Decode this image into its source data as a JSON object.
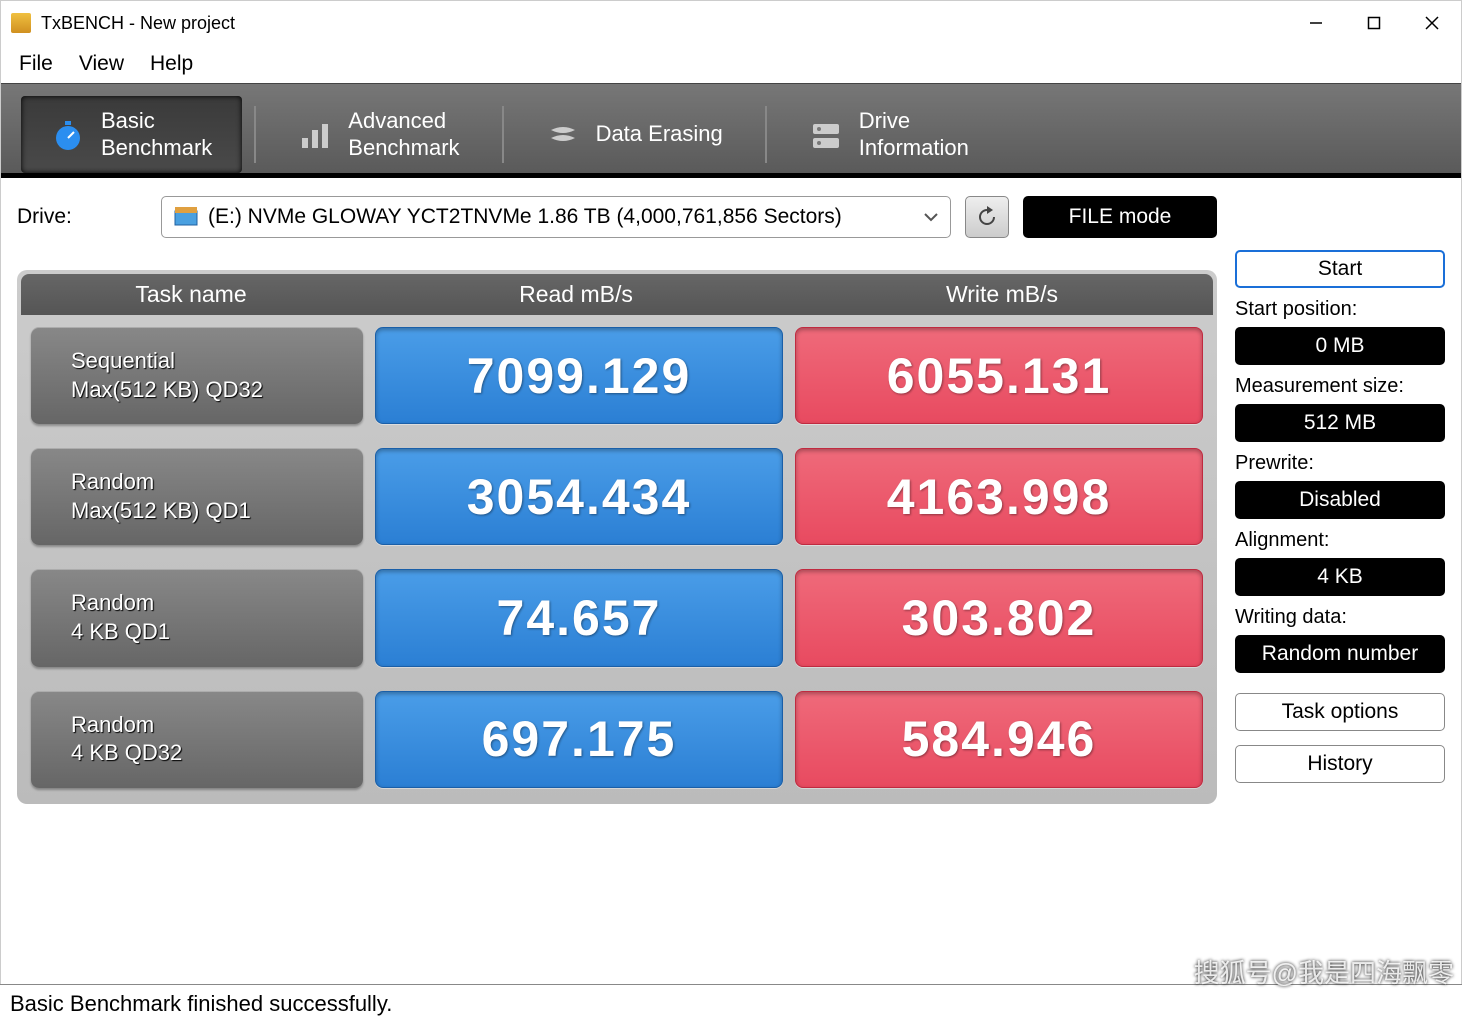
{
  "window": {
    "title": "TxBENCH - New project"
  },
  "menu": {
    "file": "File",
    "view": "View",
    "help": "Help"
  },
  "tabs": {
    "basic": {
      "line1": "Basic",
      "line2": "Benchmark"
    },
    "advanced": {
      "line1": "Advanced",
      "line2": "Benchmark"
    },
    "erase": {
      "label": "Data Erasing"
    },
    "drive": {
      "line1": "Drive",
      "line2": "Information"
    }
  },
  "drive": {
    "label": "Drive:",
    "selected": "(E:) NVMe GLOWAY YCT2TNVMe  1.86 TB (4,000,761,856 Sectors)",
    "filemode": "FILE mode"
  },
  "bench": {
    "headers": {
      "task": "Task name",
      "read": "Read mB/s",
      "write": "Write mB/s"
    },
    "colors": {
      "read_bg": "#3a8de0",
      "write_bg": "#e8556b",
      "task_bg": "#777777",
      "header_bg": "#5c5c5c",
      "frame_bg": "#c4c4c4"
    },
    "value_fontsize": 50,
    "rows": [
      {
        "task_l1": "Sequential",
        "task_l2": "Max(512 KB) QD32",
        "read": "7099.129",
        "write": "6055.131"
      },
      {
        "task_l1": "Random",
        "task_l2": "Max(512 KB) QD1",
        "read": "3054.434",
        "write": "4163.998"
      },
      {
        "task_l1": "Random",
        "task_l2": "4 KB QD1",
        "read": "74.657",
        "write": "303.802"
      },
      {
        "task_l1": "Random",
        "task_l2": "4 KB QD32",
        "read": "697.175",
        "write": "584.946"
      }
    ]
  },
  "side": {
    "start": "Start",
    "start_pos_label": "Start position:",
    "start_pos": "0 MB",
    "size_label": "Measurement size:",
    "size": "512 MB",
    "prewrite_label": "Prewrite:",
    "prewrite": "Disabled",
    "align_label": "Alignment:",
    "align": "4 KB",
    "wdata_label": "Writing data:",
    "wdata": "Random number",
    "task_options": "Task options",
    "history": "History"
  },
  "status": "Basic Benchmark finished successfully.",
  "watermark": "搜狐号@我是四海飘零"
}
